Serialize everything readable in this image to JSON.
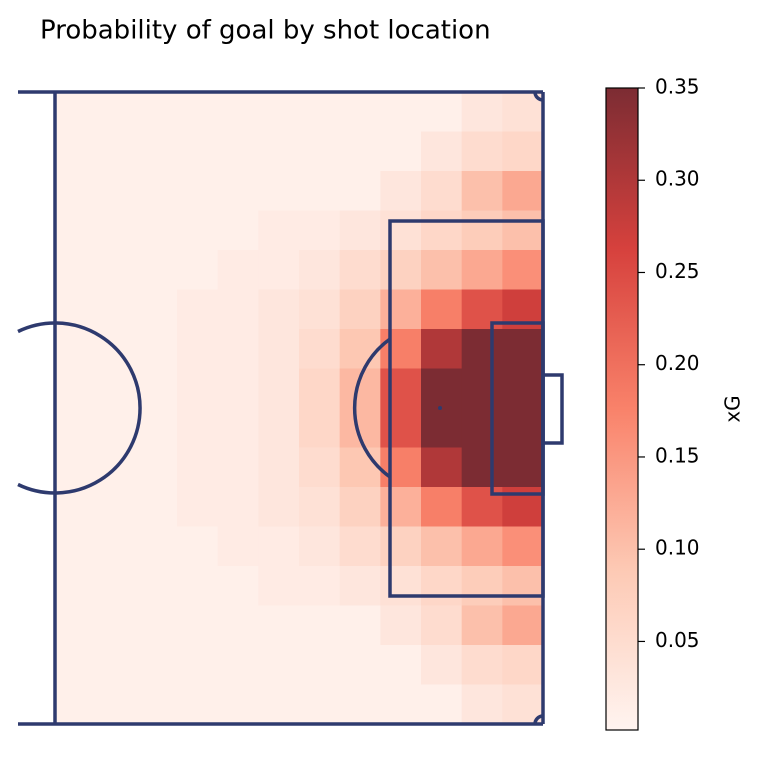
{
  "chart_data": {
    "type": "heatmap",
    "title": "Probability of goal by shot location",
    "colorbar_label": "xG",
    "colors": [
      "#fff4f0",
      "#fdc9b4",
      "#f9826a",
      "#d6413d",
      "#7c2c33"
    ],
    "zlim": [
      0.002,
      0.35
    ],
    "zticks": [
      0.05,
      {
        "value": 0.1,
        "label": "0.10"
      },
      0.15,
      {
        "value": 0.2,
        "label": "0.20"
      },
      0.25,
      {
        "value": 0.3,
        "label": "0.30"
      },
      0.35
    ],
    "values": [
      [
        0.01,
        0.01,
        0.01,
        0.01,
        0.01,
        0.01,
        0.01,
        0.01,
        0.01,
        0.01,
        0.03,
        0.04
      ],
      [
        0.01,
        0.01,
        0.01,
        0.01,
        0.01,
        0.01,
        0.01,
        0.01,
        0.01,
        0.03,
        0.05,
        0.06
      ],
      [
        0.01,
        0.01,
        0.01,
        0.01,
        0.01,
        0.01,
        0.01,
        0.01,
        0.03,
        0.05,
        0.1,
        0.13
      ],
      [
        0.01,
        0.01,
        0.01,
        0.01,
        0.01,
        0.02,
        0.02,
        0.03,
        0.04,
        0.06,
        0.08,
        0.1
      ],
      [
        0.01,
        0.01,
        0.01,
        0.01,
        0.02,
        0.02,
        0.03,
        0.05,
        0.07,
        0.1,
        0.13,
        0.16
      ],
      [
        0.01,
        0.01,
        0.01,
        0.02,
        0.02,
        0.03,
        0.04,
        0.07,
        0.12,
        0.18,
        0.24,
        0.27
      ],
      [
        0.01,
        0.01,
        0.01,
        0.02,
        0.02,
        0.03,
        0.05,
        0.09,
        0.18,
        0.3,
        0.35,
        0.35
      ],
      [
        0.01,
        0.01,
        0.01,
        0.02,
        0.02,
        0.03,
        0.06,
        0.11,
        0.24,
        0.35,
        0.35,
        0.35
      ],
      [
        0.01,
        0.01,
        0.01,
        0.02,
        0.02,
        0.03,
        0.06,
        0.11,
        0.24,
        0.35,
        0.35,
        0.35
      ],
      [
        0.01,
        0.01,
        0.01,
        0.02,
        0.02,
        0.03,
        0.05,
        0.09,
        0.18,
        0.3,
        0.35,
        0.35
      ],
      [
        0.01,
        0.01,
        0.01,
        0.02,
        0.02,
        0.03,
        0.04,
        0.07,
        0.12,
        0.18,
        0.24,
        0.27
      ],
      [
        0.01,
        0.01,
        0.01,
        0.01,
        0.02,
        0.02,
        0.03,
        0.05,
        0.07,
        0.1,
        0.13,
        0.16
      ],
      [
        0.01,
        0.01,
        0.01,
        0.01,
        0.01,
        0.02,
        0.02,
        0.03,
        0.04,
        0.06,
        0.08,
        0.1
      ],
      [
        0.01,
        0.01,
        0.01,
        0.01,
        0.01,
        0.01,
        0.01,
        0.01,
        0.03,
        0.05,
        0.1,
        0.13
      ],
      [
        0.01,
        0.01,
        0.01,
        0.01,
        0.01,
        0.01,
        0.01,
        0.01,
        0.01,
        0.03,
        0.05,
        0.06
      ],
      [
        0.01,
        0.01,
        0.01,
        0.01,
        0.01,
        0.01,
        0.01,
        0.01,
        0.01,
        0.01,
        0.03,
        0.04
      ]
    ]
  }
}
